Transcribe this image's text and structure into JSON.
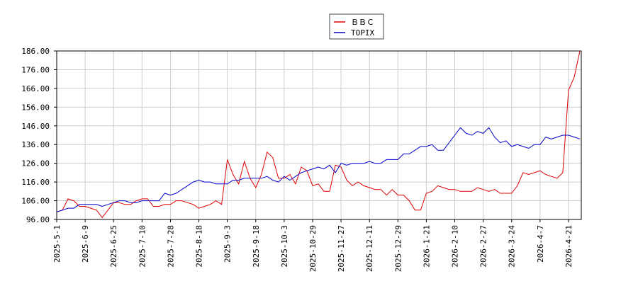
{
  "chart_data": {
    "type": "line",
    "categories": [
      "2025-5-1",
      null,
      null,
      null,
      null,
      "2025-6-9",
      null,
      null,
      null,
      null,
      "2025-6-25",
      null,
      null,
      null,
      null,
      "2025-7-10",
      null,
      null,
      null,
      null,
      "2025-7-28",
      null,
      null,
      null,
      null,
      "2025-8-18",
      null,
      null,
      null,
      null,
      "2025-9-3",
      null,
      null,
      null,
      null,
      "2025-9-18",
      null,
      null,
      null,
      null,
      "2025-10-3",
      null,
      null,
      null,
      null,
      "2025-10-29",
      null,
      null,
      null,
      null,
      "2025-11-27",
      null,
      null,
      null,
      null,
      "2025-12-11",
      null,
      null,
      null,
      null,
      "2025-12-29",
      null,
      null,
      null,
      null,
      "2026-1-21",
      null,
      null,
      null,
      null,
      "2026-2-10",
      null,
      null,
      null,
      null,
      "2026-2-27",
      null,
      null,
      null,
      null,
      "2026-3-24",
      null,
      null,
      null,
      null,
      "2026-4-7",
      null,
      null,
      null,
      null,
      "2026-4-21",
      null,
      null
    ],
    "series": [
      {
        "name": "ＢＢＣ",
        "color": "#dd0000",
        "values": [
          100,
          101,
          107,
          106,
          103,
          103,
          102,
          101,
          97,
          101,
          105,
          105,
          104,
          104,
          106,
          107,
          107,
          103,
          103,
          104,
          104,
          106,
          106,
          105,
          104,
          102,
          103,
          104,
          106,
          104,
          128,
          120,
          115,
          127,
          118,
          113,
          120,
          132,
          129,
          118,
          118,
          120,
          115,
          124,
          122,
          114,
          115,
          111,
          111,
          125,
          124,
          117,
          114,
          116,
          114,
          113,
          112,
          112,
          109,
          112,
          109,
          109,
          106,
          101,
          101,
          110,
          111,
          114,
          113,
          112,
          112,
          111,
          111,
          111,
          113,
          112,
          111,
          112,
          110,
          110,
          110,
          114,
          121,
          120,
          121,
          122,
          120,
          119,
          118,
          121,
          165,
          172,
          186
        ]
      },
      {
        "name": "TOPIX",
        "color": "#0000cc",
        "values": [
          100,
          101,
          102,
          102,
          104,
          104,
          104,
          104,
          103,
          104,
          105,
          106,
          106,
          105,
          105,
          106,
          106,
          106,
          106,
          110,
          109,
          110,
          112,
          114,
          116,
          117,
          116,
          116,
          115,
          115,
          115,
          117,
          117,
          118,
          118,
          118,
          118,
          119,
          117,
          116,
          119,
          117,
          119,
          121,
          122,
          123,
          124,
          123,
          125,
          121,
          126,
          125,
          126,
          126,
          126,
          127,
          126,
          126,
          128,
          128,
          128,
          131,
          131,
          133,
          135,
          135,
          136,
          133,
          133,
          137,
          141,
          145,
          142,
          141,
          143,
          142,
          145,
          140,
          137,
          138,
          135,
          136,
          135,
          134,
          136,
          136,
          140,
          139,
          140,
          141,
          141,
          140,
          139
        ]
      }
    ],
    "ylim": [
      96,
      186
    ],
    "yticks": [
      {
        "value": 96,
        "label": "96.00"
      },
      {
        "value": 106,
        "label": "106.00"
      },
      {
        "value": 116,
        "label": "116.00"
      },
      {
        "value": 126,
        "label": "126.00"
      },
      {
        "value": 136,
        "label": "136.00"
      },
      {
        "value": 146,
        "label": "146.00"
      },
      {
        "value": 156,
        "label": "156.00"
      },
      {
        "value": 166,
        "label": "166.00"
      },
      {
        "value": 176,
        "label": "176.00"
      },
      {
        "value": 186,
        "label": "186.00"
      }
    ],
    "grid": true
  }
}
